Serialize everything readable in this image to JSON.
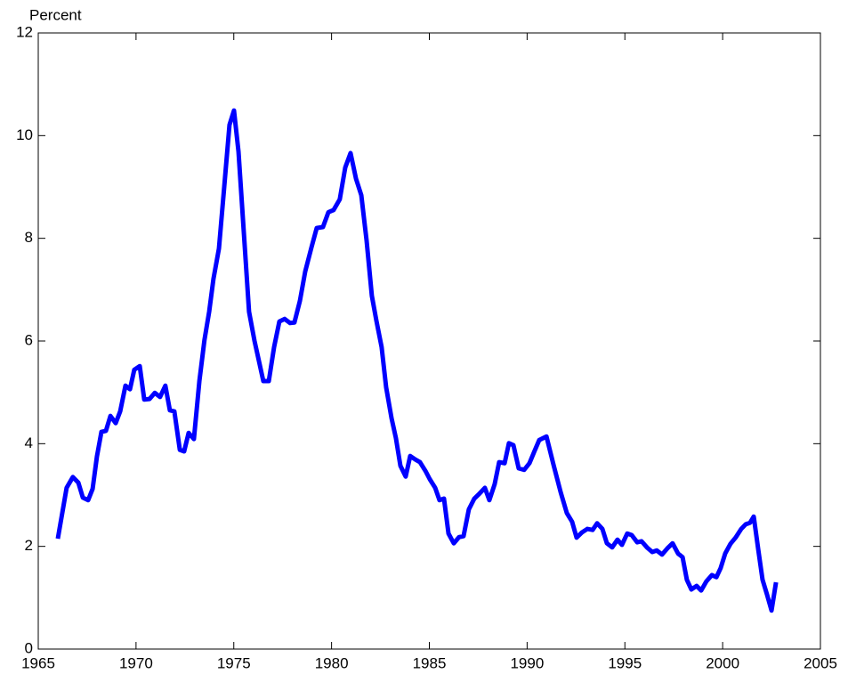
{
  "chart_data": {
    "type": "line",
    "ylabel": "Percent",
    "x": [
      1966.0,
      1966.45,
      1966.77,
      1967.05,
      1967.28,
      1967.55,
      1967.78,
      1968.0,
      1968.23,
      1968.46,
      1968.69,
      1968.96,
      1969.19,
      1969.46,
      1969.69,
      1969.91,
      1970.19,
      1970.42,
      1970.69,
      1970.96,
      1971.23,
      1971.5,
      1971.73,
      1971.96,
      1972.24,
      1972.46,
      1972.69,
      1972.96,
      1973.24,
      1973.5,
      1973.74,
      1973.96,
      1974.24,
      1974.51,
      1974.78,
      1975.01,
      1975.24,
      1975.51,
      1975.78,
      1976.06,
      1976.28,
      1976.51,
      1976.79,
      1977.06,
      1977.33,
      1977.6,
      1977.88,
      1978.1,
      1978.38,
      1978.65,
      1978.97,
      1979.24,
      1979.56,
      1979.84,
      1980.1,
      1980.42,
      1980.7,
      1980.97,
      1981.25,
      1981.52,
      1981.79,
      1982.06,
      1982.29,
      1982.56,
      1982.79,
      1983.07,
      1983.29,
      1983.52,
      1983.79,
      1984.02,
      1984.29,
      1984.52,
      1984.8,
      1985.02,
      1985.3,
      1985.52,
      1985.75,
      1985.98,
      1986.25,
      1986.52,
      1986.75,
      1987.02,
      1987.3,
      1987.57,
      1987.84,
      1988.07,
      1988.34,
      1988.57,
      1988.85,
      1989.07,
      1989.3,
      1989.57,
      1989.85,
      1990.12,
      1990.35,
      1990.62,
      1990.99,
      1991.35,
      1991.72,
      1992.03,
      1992.3,
      1992.53,
      1992.8,
      1993.08,
      1993.35,
      1993.58,
      1993.85,
      1994.08,
      1994.35,
      1994.62,
      1994.85,
      1995.12,
      1995.35,
      1995.63,
      1995.85,
      1996.13,
      1996.4,
      1996.63,
      1996.9,
      1997.17,
      1997.44,
      1997.72,
      1997.95,
      1998.17,
      1998.4,
      1998.67,
      1998.9,
      1999.17,
      1999.45,
      1999.68,
      1999.9,
      2000.13,
      2000.4,
      2000.68,
      2000.95,
      2001.18,
      2001.4,
      2001.59,
      2001.82,
      2002.04,
      2002.27,
      2002.5,
      2002.73
    ],
    "series": [
      {
        "color": "#0000ff",
        "values": [
          2.15,
          3.14,
          3.35,
          3.24,
          2.95,
          2.9,
          3.12,
          3.75,
          4.23,
          4.25,
          4.54,
          4.4,
          4.63,
          5.13,
          5.06,
          5.44,
          5.51,
          4.86,
          4.87,
          4.99,
          4.91,
          5.13,
          4.65,
          4.63,
          3.88,
          3.85,
          4.21,
          4.09,
          5.22,
          6.02,
          6.57,
          7.21,
          7.8,
          9.0,
          10.21,
          10.49,
          9.69,
          8.13,
          6.57,
          6.0,
          5.62,
          5.22,
          5.22,
          5.88,
          6.38,
          6.43,
          6.35,
          6.36,
          6.78,
          7.35,
          7.82,
          8.2,
          8.22,
          8.51,
          8.55,
          8.76,
          9.38,
          9.66,
          9.16,
          8.84,
          7.96,
          6.88,
          6.4,
          5.88,
          5.1,
          4.49,
          4.11,
          3.57,
          3.36,
          3.76,
          3.69,
          3.64,
          3.47,
          3.31,
          3.14,
          2.9,
          2.93,
          2.25,
          2.06,
          2.18,
          2.2,
          2.72,
          2.93,
          3.03,
          3.14,
          2.9,
          3.21,
          3.64,
          3.62,
          4.01,
          3.97,
          3.52,
          3.49,
          3.62,
          3.83,
          4.07,
          4.14,
          3.59,
          3.05,
          2.65,
          2.48,
          2.17,
          2.27,
          2.34,
          2.32,
          2.45,
          2.34,
          2.06,
          1.98,
          2.13,
          2.03,
          2.25,
          2.22,
          2.08,
          2.1,
          1.98,
          1.89,
          1.92,
          1.84,
          1.96,
          2.06,
          1.86,
          1.79,
          1.35,
          1.16,
          1.23,
          1.14,
          1.32,
          1.44,
          1.4,
          1.58,
          1.86,
          2.05,
          2.18,
          2.34,
          2.43,
          2.46,
          2.58,
          1.94,
          1.35,
          1.06,
          0.75,
          1.3
        ]
      }
    ],
    "xlim": [
      1965,
      2005
    ],
    "xticks": [
      1965,
      1970,
      1975,
      1980,
      1985,
      1990,
      1995,
      2000,
      2005
    ],
    "ylim": [
      0,
      12
    ],
    "yticks": [
      0,
      2,
      4,
      6,
      8,
      10,
      12
    ],
    "grid": false
  }
}
